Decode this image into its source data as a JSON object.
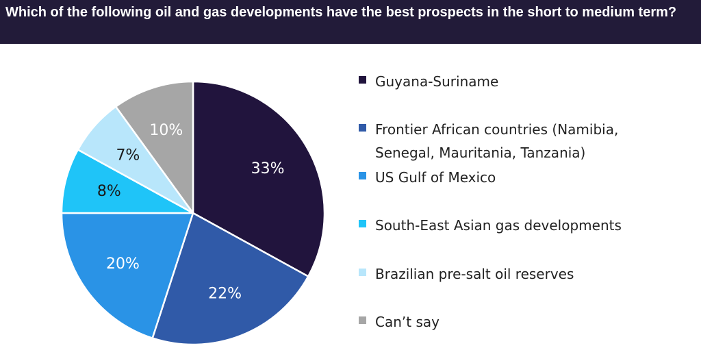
{
  "title": "Which of the following oil and gas developments have the best prospects in the short to medium term?",
  "chart_data": {
    "type": "pie",
    "title": "Which of the following oil and gas developments have the best prospects in the short to medium term?",
    "slices": [
      {
        "label": "Guyana-Suriname",
        "value": 33,
        "display": "33%",
        "color": "#21143d",
        "text_color": "#ffffff"
      },
      {
        "label": "Frontier African countries (Namibia, Senegal, Mauritania, Tanzania)",
        "value": 22,
        "display": "22%",
        "color": "#305aa8",
        "text_color": "#ffffff"
      },
      {
        "label": "US Gulf of Mexico",
        "value": 20,
        "display": "20%",
        "color": "#2a93e6",
        "text_color": "#ffffff"
      },
      {
        "label": "South-East Asian gas developments",
        "value": 8,
        "display": "8%",
        "color": "#1fc4f8",
        "text_color": "#1a1a1a"
      },
      {
        "label": "Brazilian pre-salt oil reserves",
        "value": 7,
        "display": "7%",
        "color": "#b8e6fb",
        "text_color": "#1a1a1a"
      },
      {
        "label": "Can’t say",
        "value": 10,
        "display": "10%",
        "color": "#a6a6a6",
        "text_color": "#ffffff"
      }
    ],
    "legend_position": "right"
  }
}
